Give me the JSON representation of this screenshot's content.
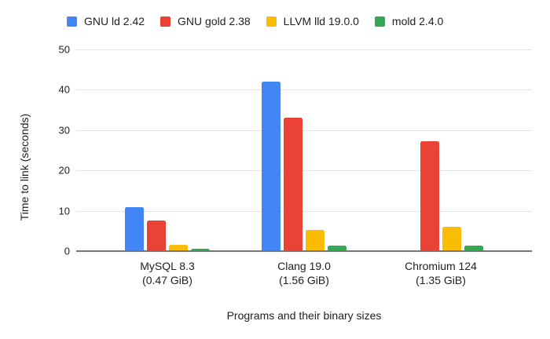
{
  "chart_data": {
    "type": "bar",
    "title": "",
    "xlabel": "Programs and their binary sizes",
    "ylabel": "Time to link (seconds)",
    "ylim": [
      0,
      50
    ],
    "yticks": [
      0,
      10,
      20,
      30,
      40,
      50
    ],
    "grid": true,
    "legend_position": "top",
    "categories": [
      {
        "label": "MySQL 8.3",
        "sublabel": "(0.47 GiB)"
      },
      {
        "label": "Clang 19.0",
        "sublabel": "(1.56 GiB)"
      },
      {
        "label": "Chromium 124",
        "sublabel": "(1.35 GiB)"
      }
    ],
    "series": [
      {
        "name": "GNU ld 2.42",
        "color": "#4285f4",
        "values": [
          10.9,
          42.1,
          0
        ]
      },
      {
        "name": "GNU gold 2.38",
        "color": "#ea4335",
        "values": [
          7.5,
          33.0,
          27.3
        ]
      },
      {
        "name": "LLVM lld 19.0.0",
        "color": "#fbbc04",
        "values": [
          1.6,
          5.2,
          6.1
        ]
      },
      {
        "name": "mold 2.4.0",
        "color": "#34a853",
        "values": [
          0.5,
          1.4,
          1.3
        ]
      }
    ]
  }
}
